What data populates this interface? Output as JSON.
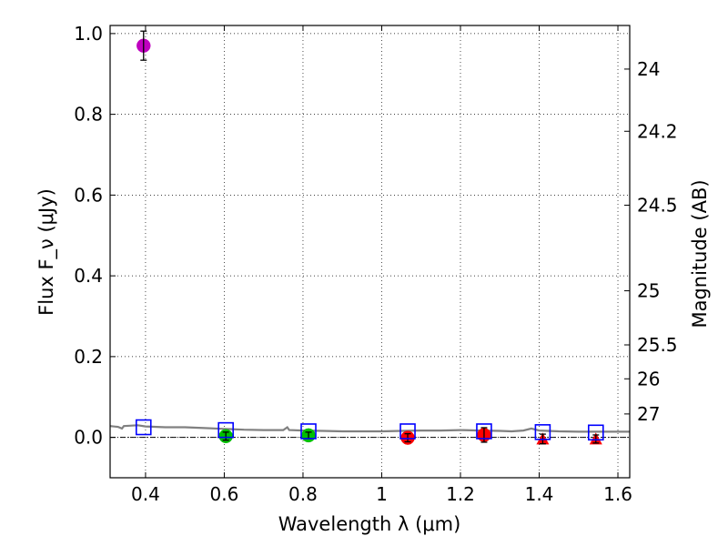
{
  "chart_data": {
    "type": "scatter",
    "xlabel": "Wavelength λ (μm)",
    "ylabel": "Flux F_ν (μJy)",
    "y2label": "Magnitude (AB)",
    "xlim": [
      0.31,
      1.63
    ],
    "ylim": [
      -0.1,
      1.02
    ],
    "grid": true,
    "x_ticks": [
      0.4,
      0.6,
      0.8,
      1.0,
      1.2,
      1.4,
      1.6
    ],
    "x_tick_labels": [
      "0.4",
      "0.6",
      "0.8",
      "1",
      "1.2",
      "1.4",
      "1.6"
    ],
    "y_ticks": [
      0.0,
      0.2,
      0.4,
      0.6,
      0.8,
      1.0
    ],
    "y_tick_labels": [
      "0.0",
      "0.2",
      "0.4",
      "0.6",
      "0.8",
      "1.0"
    ],
    "magnitude_ticks": [
      {
        "label": "24",
        "flux": 0.912
      },
      {
        "label": "24.2",
        "flux": 0.758
      },
      {
        "label": "24.5",
        "flux": 0.575
      },
      {
        "label": "25",
        "flux": 0.363
      },
      {
        "label": "25.5",
        "flux": 0.229
      },
      {
        "label": "26",
        "flux": 0.145
      },
      {
        "label": "27",
        "flux": 0.058
      }
    ],
    "series": [
      {
        "marker": "circle",
        "color": "#bf00bf",
        "points": [
          {
            "x": 0.395,
            "y": 0.97,
            "yerr": 0.036
          }
        ]
      },
      {
        "marker": "circle",
        "color": "#00bf00",
        "points": [
          {
            "x": 0.604,
            "y": 0.003,
            "yerr": 0.01
          },
          {
            "x": 0.814,
            "y": 0.005,
            "yerr": 0.008
          }
        ]
      },
      {
        "marker": "circle",
        "color": "#ff0000",
        "points": [
          {
            "x": 1.066,
            "y": -0.001,
            "yerr": 0.01
          },
          {
            "x": 1.26,
            "y": 0.006,
            "yerr": 0.018
          }
        ]
      },
      {
        "marker": "triangle",
        "color": "#ff0000",
        "points": [
          {
            "x": 1.409,
            "y": -0.004,
            "yerr": 0.012
          },
          {
            "x": 1.544,
            "y": -0.004,
            "yerr": 0.01
          }
        ]
      },
      {
        "marker": "open-square",
        "color": "#0000ff",
        "points": [
          {
            "x": 0.395,
            "y": 0.025
          },
          {
            "x": 0.604,
            "y": 0.018
          },
          {
            "x": 0.814,
            "y": 0.015
          },
          {
            "x": 1.066,
            "y": 0.015
          },
          {
            "x": 1.26,
            "y": 0.015
          },
          {
            "x": 1.409,
            "y": 0.013
          },
          {
            "x": 1.544,
            "y": 0.012
          }
        ]
      }
    ],
    "model_line": {
      "color": "#808080",
      "points": [
        [
          0.31,
          0.028
        ],
        [
          0.33,
          0.026
        ],
        [
          0.34,
          0.022
        ],
        [
          0.345,
          0.028
        ],
        [
          0.36,
          0.029
        ],
        [
          0.38,
          0.03
        ],
        [
          0.4,
          0.027
        ],
        [
          0.45,
          0.025
        ],
        [
          0.5,
          0.025
        ],
        [
          0.55,
          0.023
        ],
        [
          0.6,
          0.021
        ],
        [
          0.65,
          0.019
        ],
        [
          0.7,
          0.018
        ],
        [
          0.75,
          0.018
        ],
        [
          0.76,
          0.025
        ],
        [
          0.765,
          0.018
        ],
        [
          0.8,
          0.017
        ],
        [
          0.85,
          0.016
        ],
        [
          0.9,
          0.015
        ],
        [
          0.95,
          0.015
        ],
        [
          1.0,
          0.015
        ],
        [
          1.05,
          0.016
        ],
        [
          1.1,
          0.017
        ],
        [
          1.15,
          0.017
        ],
        [
          1.2,
          0.018
        ],
        [
          1.25,
          0.017
        ],
        [
          1.3,
          0.016
        ],
        [
          1.33,
          0.015
        ],
        [
          1.36,
          0.017
        ],
        [
          1.38,
          0.022
        ],
        [
          1.4,
          0.017
        ],
        [
          1.45,
          0.015
        ],
        [
          1.5,
          0.014
        ],
        [
          1.55,
          0.014
        ],
        [
          1.6,
          0.014
        ],
        [
          1.63,
          0.014
        ]
      ]
    }
  }
}
